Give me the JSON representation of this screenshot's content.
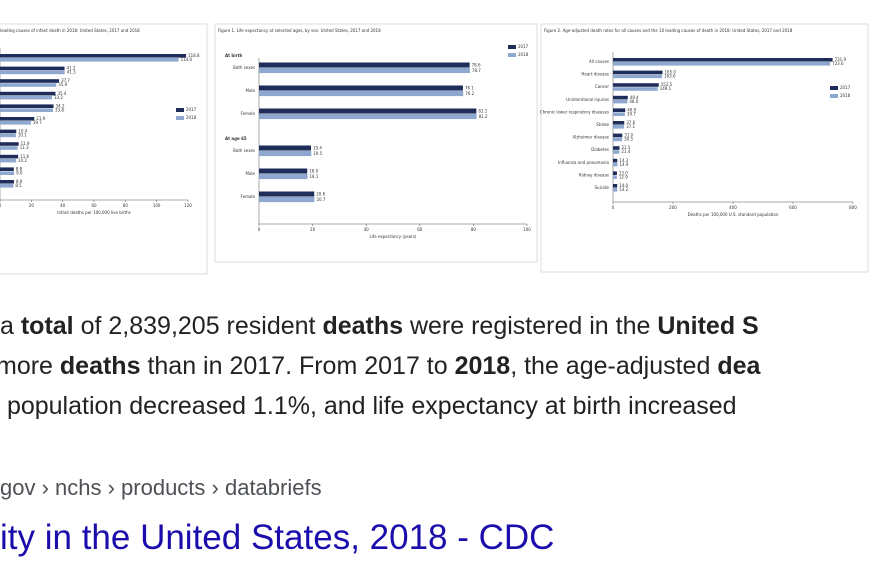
{
  "chart_data": [
    {
      "type": "bar",
      "orientation": "horizontal",
      "title": "leading causes of infant death in 2018: United States, 2017 and 2018",
      "categories": [
        null,
        null,
        null,
        null,
        null,
        null,
        null,
        null,
        null,
        null,
        null
      ],
      "series": [
        {
          "name": "2017",
          "color": "#1f2d5a",
          "values": [
            118.8,
            41.2,
            37.7,
            35.4,
            34.2,
            21.9,
            10.4,
            11.9,
            11.6,
            8.8,
            8.9
          ],
          "value_labels": [
            "118.8",
            "41.2",
            "37.7",
            "35.4",
            "34.2",
            "21.9",
            "10.4",
            "11.9",
            "11.6",
            "8.8",
            "8.9"
          ]
        },
        {
          "name": "2018",
          "color": "#8fa8cf",
          "values": [
            114.0,
            41.3,
            35.9,
            33.2,
            33.8,
            19.7,
            10.1,
            11.3,
            10.2,
            9.0,
            8.5
          ],
          "value_labels": [
            "114.0",
            "41.3",
            "35.9",
            "33.2",
            "33.8",
            "19.7",
            "10.1",
            "11.3",
            "10.2",
            "9.0",
            "8.5"
          ]
        }
      ],
      "xlim": [
        0,
        120
      ],
      "xticks": [
        0,
        20,
        40,
        60,
        80,
        100,
        120
      ],
      "xlabel": "Infant deaths per 100,000 live births"
    },
    {
      "type": "bar",
      "orientation": "horizontal",
      "title": "Figure 1. Life expectancy at selected ages, by sex: United States, 2017 and 2018",
      "groups": [
        "At birth",
        "At age 65"
      ],
      "categories": [
        "Both sexes",
        "Male",
        "Female",
        "Both sexes",
        "Male",
        "Female"
      ],
      "series": [
        {
          "name": "2017",
          "color": "#1f2d5a",
          "values": [
            78.6,
            76.1,
            81.1,
            19.4,
            18.0,
            20.6
          ],
          "value_labels": [
            "78.6",
            "76.1",
            "81.1",
            "19.4",
            "18.0",
            "20.6"
          ]
        },
        {
          "name": "2018",
          "color": "#8fa8cf",
          "values": [
            78.7,
            76.2,
            81.2,
            19.5,
            18.1,
            20.7
          ],
          "value_labels": [
            "78.7",
            "76.2",
            "81.2",
            "19.5",
            "18.1",
            "20.7"
          ]
        }
      ],
      "xlim": [
        0,
        100
      ],
      "xticks": [
        0,
        20,
        40,
        60,
        80,
        100
      ],
      "xlabel": "Life expectancy (years)"
    },
    {
      "type": "bar",
      "orientation": "horizontal",
      "title": "Figure 2. Age-adjusted death rates for all causes and the 10 leading causes of death in 2018: United States, 2017 and 2018",
      "categories": [
        "All causes",
        "Heart disease",
        "Cancer",
        "Unintentional injuries",
        "Chronic lower respiratory diseases",
        "Stroke",
        "Alzheimer disease",
        "Diabetes",
        "Influenza and pneumonia",
        "Kidney disease",
        "Suicide"
      ],
      "series": [
        {
          "name": "2017",
          "color": "#1f2d5a",
          "values": [
            731.9,
            165.0,
            152.5,
            49.4,
            40.9,
            37.6,
            31.0,
            21.5,
            14.3,
            13.0,
            14.0
          ],
          "value_labels": [
            "731.9",
            "165.0",
            "152.5",
            "49.4",
            "40.9",
            "37.6",
            "31.0",
            "21.5",
            "14.3",
            "13.0",
            "14.0"
          ]
        },
        {
          "name": "2018",
          "color": "#8fa8cf",
          "values": [
            723.6,
            163.6,
            149.1,
            48.0,
            39.7,
            37.1,
            30.5,
            21.4,
            14.9,
            12.9,
            14.2
          ],
          "value_labels": [
            "723.6",
            "163.6",
            "149.1",
            "48.0",
            "39.7",
            "37.1",
            "30.5",
            "21.4",
            "14.9",
            "12.9",
            "14.2"
          ]
        }
      ],
      "xlim": [
        0,
        800
      ],
      "xticks": [
        0,
        200,
        400,
        600,
        800
      ],
      "xlabel": "Deaths per 100,000 U.S. standard population"
    }
  ],
  "snippet": {
    "lines": [
      [
        {
          "text": "a "
        },
        {
          "text": "total",
          "bold": true
        },
        {
          "text": " of 2,839,205 resident "
        },
        {
          "text": "deaths",
          "bold": true
        },
        {
          "text": " were registered in the "
        },
        {
          "text": "United S",
          "bold": true
        }
      ],
      [
        {
          "text": "more "
        },
        {
          "text": "deaths",
          "bold": true
        },
        {
          "text": " than in 2017. From 2017 to "
        },
        {
          "text": "2018",
          "bold": true
        },
        {
          "text": ", the age-adjusted "
        },
        {
          "text": "dea",
          "bold": true
        }
      ],
      [
        {
          "text": " population decreased 1.1%, and life expectancy at birth increased"
        }
      ]
    ]
  },
  "breadcrumb": "gov › nchs › products › databriefs",
  "result_title": "ity in the United States, 2018 - CDC"
}
